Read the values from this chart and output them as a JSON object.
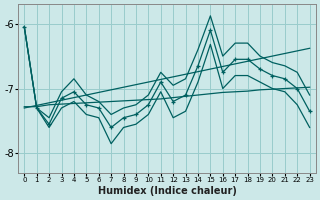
{
  "xlabel": "Humidex (Indice chaleur)",
  "bg_color": "#cce8e8",
  "grid_color": "#99cccc",
  "line_color": "#006060",
  "x": [
    0,
    1,
    2,
    3,
    4,
    5,
    6,
    7,
    8,
    9,
    10,
    11,
    12,
    13,
    14,
    15,
    16,
    17,
    18,
    19,
    20,
    21,
    22,
    23
  ],
  "y_main": [
    -6.05,
    -7.3,
    -7.55,
    -7.15,
    -7.05,
    -7.25,
    -7.3,
    -7.6,
    -7.45,
    -7.4,
    -7.25,
    -6.9,
    -7.2,
    -7.1,
    -6.65,
    -6.1,
    -6.75,
    -6.55,
    -6.55,
    -6.7,
    -6.8,
    -6.85,
    -7.0,
    -7.35
  ],
  "y_upper": [
    -6.05,
    -7.3,
    -7.45,
    -7.05,
    -6.85,
    -7.1,
    -7.2,
    -7.4,
    -7.3,
    -7.25,
    -7.1,
    -6.75,
    -6.95,
    -6.85,
    -6.4,
    -5.88,
    -6.5,
    -6.3,
    -6.3,
    -6.5,
    -6.6,
    -6.65,
    -6.75,
    -7.1
  ],
  "y_lower": [
    -6.05,
    -7.3,
    -7.6,
    -7.3,
    -7.2,
    -7.4,
    -7.45,
    -7.85,
    -7.6,
    -7.55,
    -7.4,
    -7.05,
    -7.45,
    -7.35,
    -6.9,
    -6.32,
    -7.0,
    -6.8,
    -6.8,
    -6.9,
    -7.0,
    -7.05,
    -7.25,
    -7.6
  ],
  "y_trend": [
    -7.3,
    -7.26,
    -7.22,
    -7.18,
    -7.14,
    -7.1,
    -7.06,
    -7.02,
    -6.98,
    -6.94,
    -6.9,
    -6.86,
    -6.82,
    -6.78,
    -6.74,
    -6.7,
    -6.66,
    -6.62,
    -6.58,
    -6.54,
    -6.5,
    -6.46,
    -6.42,
    -6.38
  ],
  "y_flat": [
    -7.28,
    -7.28,
    -7.25,
    -7.24,
    -7.23,
    -7.22,
    -7.21,
    -7.2,
    -7.19,
    -7.18,
    -7.17,
    -7.16,
    -7.14,
    -7.12,
    -7.1,
    -7.08,
    -7.06,
    -7.05,
    -7.04,
    -7.02,
    -7.01,
    -7.0,
    -6.99,
    -6.98
  ],
  "ylim": [
    -8.3,
    -5.7
  ],
  "xlim": [
    -0.5,
    23.5
  ],
  "yticks": [
    -8,
    -7,
    -6
  ],
  "xticks": [
    0,
    1,
    2,
    3,
    4,
    5,
    6,
    7,
    8,
    9,
    10,
    11,
    12,
    13,
    14,
    15,
    16,
    17,
    18,
    19,
    20,
    21,
    22,
    23
  ]
}
